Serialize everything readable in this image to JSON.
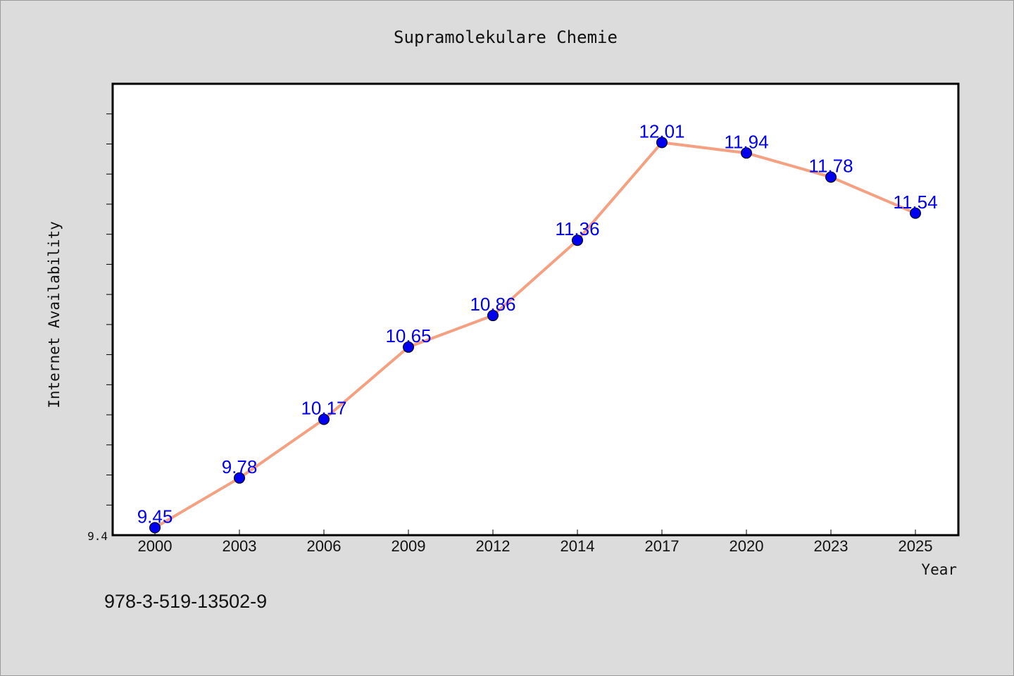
{
  "chart_data": {
    "type": "line",
    "title": "Supramolekulare Chemie",
    "xlabel": "Year",
    "ylabel": "Internet Availability",
    "categories": [
      "2000",
      "2003",
      "2006",
      "2009",
      "2012",
      "2014",
      "2017",
      "2020",
      "2023",
      "2025"
    ],
    "series": [
      {
        "values": [
          9.45,
          9.78,
          10.17,
          10.65,
          10.86,
          11.36,
          12.01,
          11.94,
          11.78,
          11.54
        ],
        "labels": [
          "9.45",
          "9.78",
          "10.17",
          "10.65",
          "10.86",
          "11.36",
          "12.01",
          "11.94",
          "11.78",
          "11.54"
        ]
      }
    ],
    "ylim": [
      9.4,
      12.4
    ],
    "y_tick_labels": [
      "9.4"
    ],
    "grid": false,
    "line_color": "#f4a081",
    "marker_color": "#0000ee"
  },
  "footer": {
    "isbn": "978-3-519-13502-9"
  }
}
